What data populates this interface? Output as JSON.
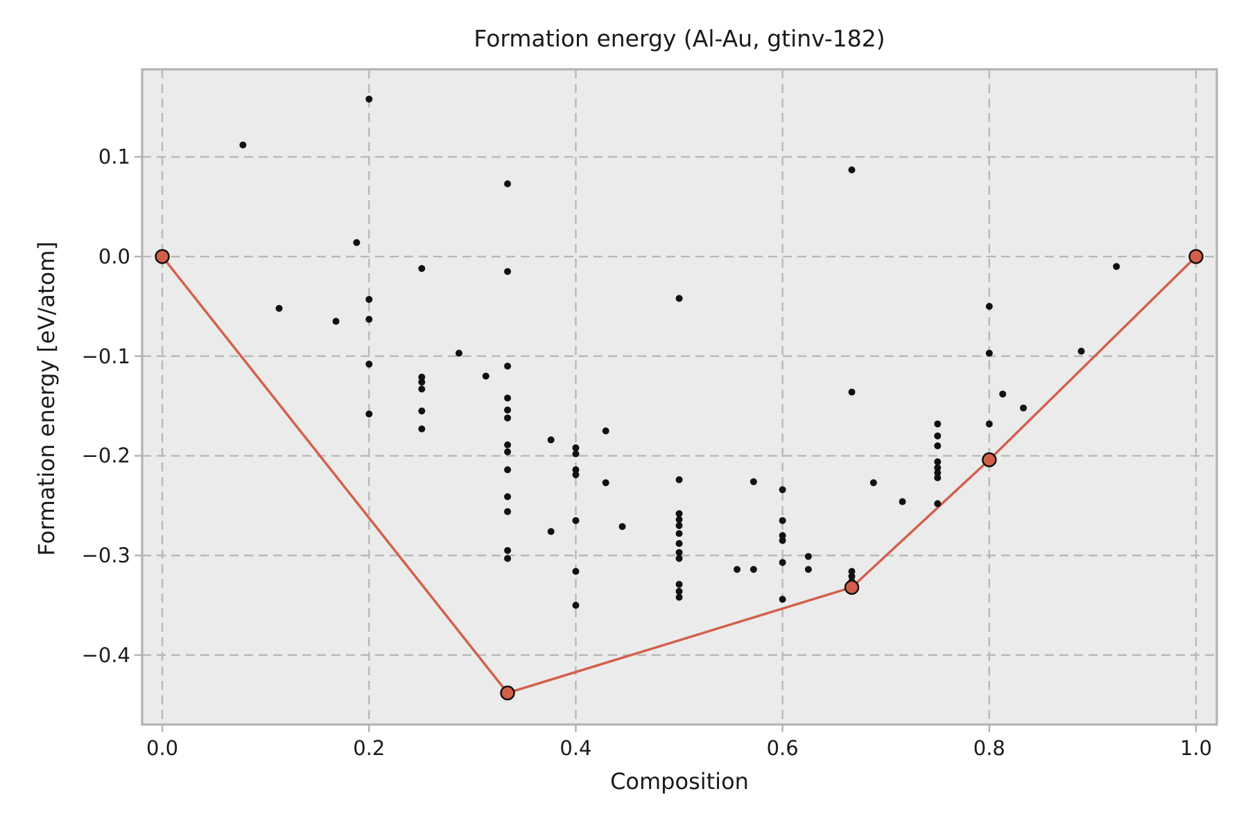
{
  "chart_data": {
    "type": "scatter",
    "title": "Formation energy (Al-Au, gtinv-182)",
    "xlabel": "Composition",
    "ylabel": "Formation energy [eV/atom]",
    "grid": true,
    "legend": "none",
    "xlim": [
      -0.0195,
      1.0201
    ],
    "ylim": [
      -0.4697,
      0.1879
    ],
    "x_ticks": [
      {
        "value": 0.0,
        "label": "0.0"
      },
      {
        "value": 0.2,
        "label": "0.2"
      },
      {
        "value": 0.4,
        "label": "0.4"
      },
      {
        "value": 0.6,
        "label": "0.6"
      },
      {
        "value": 0.8,
        "label": "0.8"
      },
      {
        "value": 1.0,
        "label": "1.0"
      }
    ],
    "y_ticks": [
      {
        "value": 0.1,
        "label": "0.1"
      },
      {
        "value": 0.0,
        "label": "0.0"
      },
      {
        "value": -0.1,
        "label": "−0.1"
      },
      {
        "value": -0.2,
        "label": "−0.2"
      },
      {
        "value": -0.3,
        "label": "−0.3"
      },
      {
        "value": -0.4,
        "label": "−0.4"
      }
    ],
    "colors": {
      "figure_bg": "#ffffff",
      "plot_bg": "#ebebeb",
      "grid": "#b8b8b8",
      "spine": "#b2b2b2",
      "text": "#1a1a1a",
      "scatter": "#111111",
      "hull": "#d35f4b",
      "hull_edge": "#111111"
    },
    "series": [
      {
        "name": "structure-energies",
        "type": "scatter",
        "color": "#111111",
        "marker_radius": 5,
        "points": [
          [
            0.078,
            0.112
          ],
          [
            0.113,
            -0.052
          ],
          [
            0.168,
            -0.065
          ],
          [
            0.188,
            0.014
          ],
          [
            0.2,
            0.158
          ],
          [
            0.2,
            -0.043
          ],
          [
            0.2,
            -0.063
          ],
          [
            0.2,
            -0.108
          ],
          [
            0.2,
            -0.158
          ],
          [
            0.251,
            -0.012
          ],
          [
            0.251,
            -0.121
          ],
          [
            0.251,
            -0.126
          ],
          [
            0.251,
            -0.133
          ],
          [
            0.251,
            -0.155
          ],
          [
            0.251,
            -0.173
          ],
          [
            0.287,
            -0.097
          ],
          [
            0.313,
            -0.12
          ],
          [
            0.334,
            0.073
          ],
          [
            0.334,
            -0.015
          ],
          [
            0.334,
            -0.11
          ],
          [
            0.334,
            -0.142
          ],
          [
            0.334,
            -0.154
          ],
          [
            0.334,
            -0.162
          ],
          [
            0.334,
            -0.189
          ],
          [
            0.334,
            -0.196
          ],
          [
            0.334,
            -0.214
          ],
          [
            0.334,
            -0.241
          ],
          [
            0.334,
            -0.256
          ],
          [
            0.334,
            -0.295
          ],
          [
            0.334,
            -0.303
          ],
          [
            0.376,
            -0.184
          ],
          [
            0.376,
            -0.276
          ],
          [
            0.4,
            -0.192
          ],
          [
            0.4,
            -0.198
          ],
          [
            0.4,
            -0.214
          ],
          [
            0.4,
            -0.219
          ],
          [
            0.4,
            -0.265
          ],
          [
            0.4,
            -0.316
          ],
          [
            0.4,
            -0.35
          ],
          [
            0.429,
            -0.175
          ],
          [
            0.429,
            -0.227
          ],
          [
            0.445,
            -0.271
          ],
          [
            0.5,
            -0.042
          ],
          [
            0.5,
            -0.224
          ],
          [
            0.5,
            -0.258
          ],
          [
            0.5,
            -0.264
          ],
          [
            0.5,
            -0.27
          ],
          [
            0.5,
            -0.278
          ],
          [
            0.5,
            -0.288
          ],
          [
            0.5,
            -0.297
          ],
          [
            0.5,
            -0.303
          ],
          [
            0.5,
            -0.329
          ],
          [
            0.5,
            -0.336
          ],
          [
            0.5,
            -0.342
          ],
          [
            0.556,
            -0.314
          ],
          [
            0.572,
            -0.226
          ],
          [
            0.572,
            -0.314
          ],
          [
            0.6,
            -0.234
          ],
          [
            0.6,
            -0.265
          ],
          [
            0.6,
            -0.28
          ],
          [
            0.6,
            -0.285
          ],
          [
            0.6,
            -0.307
          ],
          [
            0.6,
            -0.344
          ],
          [
            0.625,
            -0.301
          ],
          [
            0.625,
            -0.314
          ],
          [
            0.667,
            0.087
          ],
          [
            0.667,
            -0.136
          ],
          [
            0.667,
            -0.316
          ],
          [
            0.667,
            -0.321
          ],
          [
            0.667,
            -0.326
          ],
          [
            0.688,
            -0.227
          ],
          [
            0.716,
            -0.246
          ],
          [
            0.75,
            -0.168
          ],
          [
            0.75,
            -0.18
          ],
          [
            0.75,
            -0.19
          ],
          [
            0.75,
            -0.206
          ],
          [
            0.75,
            -0.212
          ],
          [
            0.75,
            -0.217
          ],
          [
            0.75,
            -0.222
          ],
          [
            0.75,
            -0.248
          ],
          [
            0.8,
            -0.05
          ],
          [
            0.8,
            -0.097
          ],
          [
            0.8,
            -0.168
          ],
          [
            0.813,
            -0.138
          ],
          [
            0.833,
            -0.152
          ],
          [
            0.889,
            -0.095
          ],
          [
            0.923,
            -0.01
          ]
        ]
      },
      {
        "name": "convex-hull",
        "type": "line-with-markers",
        "color": "#d35f4b",
        "line_width": 3.5,
        "marker_radius": 9.5,
        "marker_edge_width": 2.5,
        "points": [
          [
            0.0,
            0.0
          ],
          [
            0.334,
            -0.438
          ],
          [
            0.667,
            -0.332
          ],
          [
            0.8,
            -0.204
          ],
          [
            1.0,
            0.0
          ]
        ]
      }
    ]
  }
}
